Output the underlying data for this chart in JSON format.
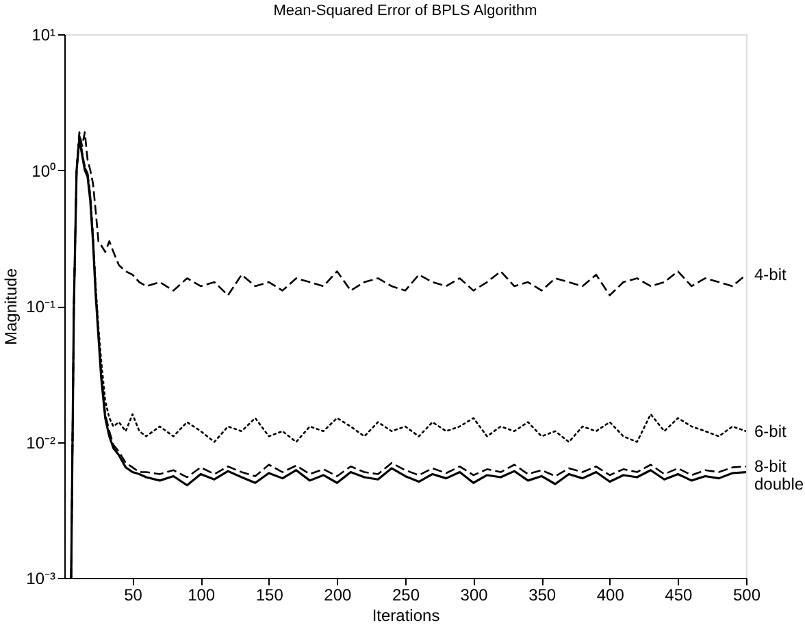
{
  "chart_data": {
    "type": "line",
    "title": "Mean-Squared Error of BPLS Algorithm",
    "xlabel": "Iterations",
    "ylabel": "Magnitude",
    "x": [
      5,
      7,
      9,
      11,
      13,
      15,
      17,
      19,
      21,
      23,
      25,
      27,
      30,
      33,
      36,
      40,
      45,
      50,
      55,
      60,
      70,
      80,
      90,
      100,
      110,
      120,
      130,
      140,
      150,
      160,
      170,
      180,
      190,
      200,
      210,
      220,
      230,
      240,
      250,
      260,
      270,
      280,
      290,
      300,
      310,
      320,
      330,
      340,
      350,
      360,
      370,
      380,
      390,
      400,
      410,
      420,
      430,
      440,
      450,
      460,
      470,
      480,
      490,
      500
    ],
    "series": [
      {
        "name": "4-bit",
        "color": "#000000",
        "line_style": "dashed",
        "values": [
          0.001,
          0.1,
          1.0,
          1.9,
          1.5,
          1.9,
          1.2,
          1.0,
          0.8,
          0.5,
          0.3,
          0.28,
          0.25,
          0.3,
          0.25,
          0.2,
          0.18,
          0.17,
          0.15,
          0.14,
          0.15,
          0.13,
          0.16,
          0.14,
          0.15,
          0.12,
          0.17,
          0.14,
          0.15,
          0.13,
          0.16,
          0.15,
          0.14,
          0.18,
          0.13,
          0.15,
          0.16,
          0.14,
          0.13,
          0.17,
          0.15,
          0.14,
          0.16,
          0.13,
          0.15,
          0.18,
          0.14,
          0.15,
          0.13,
          0.16,
          0.15,
          0.14,
          0.17,
          0.12,
          0.15,
          0.16,
          0.14,
          0.15,
          0.18,
          0.14,
          0.16,
          0.15,
          0.14,
          0.17
        ]
      },
      {
        "name": "6-bit",
        "color": "#000000",
        "line_style": "dotted",
        "values": [
          0.001,
          0.1,
          1.0,
          1.8,
          1.35,
          1.05,
          0.95,
          0.65,
          0.33,
          0.14,
          0.07,
          0.04,
          0.02,
          0.015,
          0.013,
          0.014,
          0.012,
          0.016,
          0.012,
          0.011,
          0.013,
          0.011,
          0.014,
          0.012,
          0.01,
          0.013,
          0.012,
          0.015,
          0.011,
          0.012,
          0.01,
          0.013,
          0.012,
          0.015,
          0.013,
          0.011,
          0.014,
          0.012,
          0.013,
          0.011,
          0.014,
          0.012,
          0.013,
          0.015,
          0.011,
          0.013,
          0.012,
          0.014,
          0.011,
          0.012,
          0.01,
          0.013,
          0.012,
          0.014,
          0.011,
          0.01,
          0.016,
          0.012,
          0.015,
          0.013,
          0.012,
          0.011,
          0.013,
          0.012
        ]
      },
      {
        "name": "8-bit",
        "color": "#000000",
        "line_style": "dashed",
        "values": [
          0.001,
          0.1,
          1.0,
          1.8,
          1.35,
          1.05,
          0.95,
          0.65,
          0.32,
          0.13,
          0.065,
          0.032,
          0.016,
          0.012,
          0.0095,
          0.0085,
          0.007,
          0.0065,
          0.006,
          0.006,
          0.0058,
          0.0062,
          0.0055,
          0.0065,
          0.0058,
          0.0066,
          0.006,
          0.0056,
          0.0068,
          0.006,
          0.0067,
          0.0058,
          0.0063,
          0.0056,
          0.0066,
          0.006,
          0.0058,
          0.007,
          0.0062,
          0.0057,
          0.0064,
          0.0059,
          0.0066,
          0.0057,
          0.0063,
          0.006,
          0.0068,
          0.0058,
          0.0062,
          0.0056,
          0.0064,
          0.006,
          0.0066,
          0.0057,
          0.0063,
          0.006,
          0.0068,
          0.0058,
          0.0064,
          0.0057,
          0.0062,
          0.006,
          0.0065,
          0.0066
        ]
      },
      {
        "name": "double",
        "color": "#000000",
        "line_style": "solid",
        "values": [
          0.001,
          0.1,
          1.0,
          1.7,
          1.3,
          1.0,
          0.9,
          0.6,
          0.3,
          0.12,
          0.06,
          0.03,
          0.015,
          0.011,
          0.009,
          0.008,
          0.0065,
          0.006,
          0.0058,
          0.0055,
          0.0052,
          0.0056,
          0.0048,
          0.0058,
          0.0053,
          0.0061,
          0.0055,
          0.005,
          0.0059,
          0.0054,
          0.0062,
          0.0052,
          0.0057,
          0.005,
          0.006,
          0.0055,
          0.0053,
          0.0064,
          0.0056,
          0.0051,
          0.0058,
          0.0054,
          0.006,
          0.005,
          0.0057,
          0.0055,
          0.0061,
          0.0052,
          0.0056,
          0.0049,
          0.0058,
          0.0054,
          0.006,
          0.0051,
          0.0057,
          0.0055,
          0.0062,
          0.0053,
          0.0058,
          0.0052,
          0.0056,
          0.0054,
          0.0059,
          0.006
        ]
      }
    ],
    "xlim": [
      0,
      500
    ],
    "xticks": [
      50,
      100,
      150,
      200,
      250,
      300,
      350,
      400,
      450,
      500
    ],
    "ylim": [
      0.001,
      10
    ],
    "log": true,
    "yticks": [
      {
        "value": 0.001,
        "label": "10⁻³"
      },
      {
        "value": 0.01,
        "label": "10⁻²"
      },
      {
        "value": 0.1,
        "label": "10⁻¹"
      },
      {
        "value": 1,
        "label": "10⁰"
      },
      {
        "value": 10,
        "label": "10¹"
      }
    ],
    "grid": false,
    "marker": "none"
  }
}
